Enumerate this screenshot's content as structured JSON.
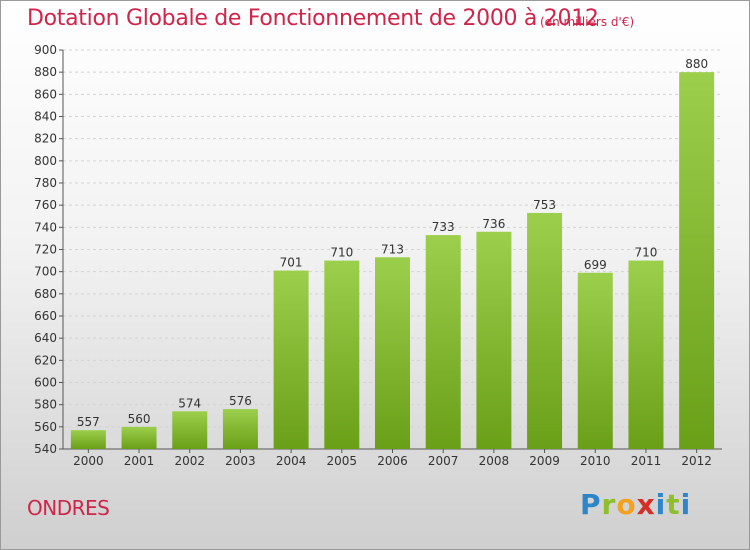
{
  "title": "Dotation Globale de Fonctionnement de 2000 à 2012",
  "subtitle": "(en milliers d'€)",
  "commune": "ONDRES",
  "logo": {
    "letters": [
      "P",
      "r",
      "o",
      "x",
      "i",
      "t",
      "i"
    ],
    "colors": [
      "#2e86c9",
      "#8fbf2f",
      "#f2a21f",
      "#d62e27",
      "#2e86c9",
      "#8fbf2f",
      "#2e86c9"
    ]
  },
  "colors": {
    "bar_top": "#9ccf4c",
    "bar_bottom": "#6a9f18",
    "accent": "#d0244a"
  },
  "chart_data": {
    "type": "bar",
    "categories": [
      "2000",
      "2001",
      "2002",
      "2003",
      "2004",
      "2005",
      "2006",
      "2007",
      "2008",
      "2009",
      "2010",
      "2011",
      "2012"
    ],
    "values": [
      557,
      560,
      574,
      576,
      701,
      710,
      713,
      733,
      736,
      753,
      699,
      710,
      880
    ],
    "ylim": [
      540,
      900
    ],
    "yticks": [
      540,
      560,
      580,
      600,
      620,
      640,
      660,
      680,
      700,
      720,
      740,
      760,
      780,
      800,
      820,
      840,
      860,
      880,
      900
    ],
    "grid": true
  }
}
